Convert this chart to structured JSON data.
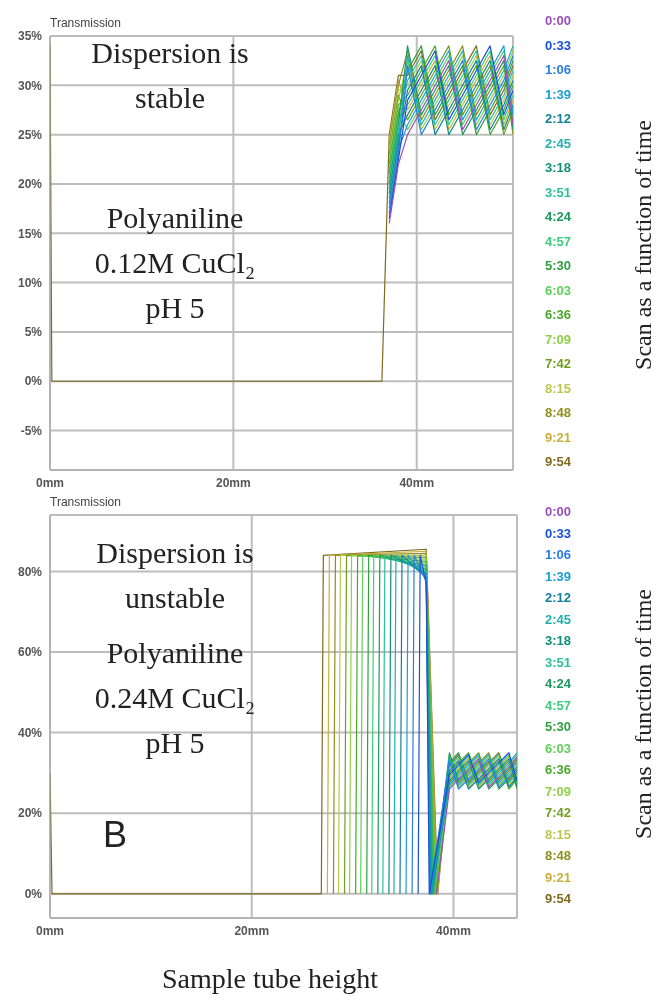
{
  "chart_data": [
    {
      "type": "line",
      "ylabel": "Transmission",
      "legend_title": "Scan as a function of time",
      "legend": "right",
      "grid": true,
      "xlim": [
        0,
        50.5
      ],
      "xticks": [
        {
          "value": 0,
          "label": "0mm"
        },
        {
          "value": 20,
          "label": "20mm"
        },
        {
          "value": 40,
          "label": "40mm"
        }
      ],
      "ylim": [
        -9,
        35
      ],
      "yticks": [
        {
          "value": -5,
          "label": "-5%"
        },
        {
          "value": 0,
          "label": "0%"
        },
        {
          "value": 5,
          "label": "5%"
        },
        {
          "value": 10,
          "label": "10%"
        },
        {
          "value": 15,
          "label": "15%"
        },
        {
          "value": 20,
          "label": "20%"
        },
        {
          "value": 25,
          "label": "25%"
        },
        {
          "value": 30,
          "label": "30%"
        },
        {
          "value": 35,
          "label": "35%"
        }
      ],
      "annotations": [
        "Dispersion is\nstable",
        "Polyaniline\n0.12M CuCl₂\npH 5"
      ],
      "x": [
        0,
        0.2,
        20,
        36.2,
        37,
        38,
        39,
        40.5,
        42,
        43.5,
        45,
        46.5,
        48,
        49.5,
        50.5
      ],
      "series": [
        {
          "name": "0:00",
          "color": "#9b4fb8",
          "values": [
            null,
            null,
            null,
            null,
            16,
            22,
            25,
            27.5,
            30,
            32.5,
            25.5,
            28,
            30.5,
            33,
            26
          ]
        },
        {
          "name": "0:33",
          "color": "#1c4fd6",
          "values": [
            null,
            null,
            null,
            null,
            16.5,
            22.5,
            28.5,
            31,
            33.5,
            26.5,
            29,
            31.5,
            34,
            27,
            29.5
          ]
        },
        {
          "name": "1:06",
          "color": "#2b7de0",
          "values": [
            null,
            null,
            null,
            null,
            17,
            23,
            32,
            25,
            27.5,
            30,
            32.5,
            25.5,
            28,
            30.5,
            33
          ]
        },
        {
          "name": "1:39",
          "color": "#1a9fd0",
          "values": [
            null,
            null,
            null,
            null,
            17.5,
            23.5,
            26,
            28.5,
            31,
            33.5,
            26.5,
            29,
            31.5,
            34,
            27
          ]
        },
        {
          "name": "2:12",
          "color": "#127f99",
          "values": [
            null,
            null,
            null,
            null,
            18,
            24,
            29.5,
            32,
            25,
            27.5,
            30,
            32.5,
            25.5,
            28,
            30.5
          ]
        },
        {
          "name": "2:45",
          "color": "#20b0b0",
          "values": [
            null,
            null,
            null,
            null,
            18.5,
            24.5,
            33,
            26,
            28.5,
            31,
            33.5,
            26.5,
            29,
            31.5,
            34
          ]
        },
        {
          "name": "3:18",
          "color": "#0f8f7a",
          "values": [
            null,
            null,
            null,
            null,
            19,
            25,
            27,
            29.5,
            32,
            25,
            27.5,
            30,
            32.5,
            25.5,
            28
          ]
        },
        {
          "name": "3:51",
          "color": "#2cc09a",
          "values": [
            null,
            null,
            null,
            null,
            19.5,
            25.5,
            30.5,
            33,
            26,
            28.5,
            31,
            33.5,
            26.5,
            29,
            31.5
          ]
        },
        {
          "name": "4:24",
          "color": "#1b9a5e",
          "values": [
            null,
            null,
            null,
            null,
            20,
            26,
            34,
            27,
            29.5,
            32,
            25,
            27.5,
            30,
            32.5,
            25.5
          ]
        },
        {
          "name": "4:57",
          "color": "#3ccf78",
          "values": [
            null,
            null,
            null,
            null,
            20.5,
            26.5,
            28,
            30.5,
            33,
            26,
            28.5,
            31,
            33.5,
            26.5,
            29
          ]
        },
        {
          "name": "5:30",
          "color": "#2f9f3f",
          "values": [
            null,
            null,
            null,
            null,
            21,
            27,
            31.5,
            34,
            27,
            29.5,
            32,
            25,
            27.5,
            30,
            32.5
          ]
        },
        {
          "name": "6:03",
          "color": "#5fd05a",
          "values": [
            null,
            null,
            null,
            null,
            21.5,
            27.5,
            25.5,
            28,
            30.5,
            33,
            26,
            28.5,
            31,
            33.5,
            26.5
          ]
        },
        {
          "name": "6:36",
          "color": "#4aa82a",
          "values": [
            null,
            null,
            null,
            null,
            22,
            28,
            29,
            31.5,
            34,
            27,
            29.5,
            32,
            25,
            27.5,
            30
          ]
        },
        {
          "name": "7:09",
          "color": "#8fd048",
          "values": [
            null,
            null,
            null,
            null,
            22.5,
            28.5,
            32.5,
            25.5,
            28,
            30.5,
            33,
            26,
            28.5,
            31,
            33.5
          ]
        },
        {
          "name": "7:42",
          "color": "#6f9f20",
          "values": [
            null,
            null,
            null,
            null,
            23,
            29,
            26.5,
            29,
            31.5,
            34,
            27,
            29.5,
            32,
            25,
            27.5
          ]
        },
        {
          "name": "8:15",
          "color": "#b8c850",
          "values": [
            null,
            null,
            null,
            null,
            23.5,
            29.5,
            30,
            32.5,
            25.5,
            28,
            30.5,
            33,
            26,
            28.5,
            31
          ]
        },
        {
          "name": "8:48",
          "color": "#8f8f20",
          "values": [
            null,
            null,
            null,
            null,
            24,
            30,
            33.5,
            26.5,
            29,
            31.5,
            34,
            27,
            29.5,
            32,
            25
          ]
        },
        {
          "name": "9:21",
          "color": "#c8b040",
          "values": [
            null,
            null,
            null,
            null,
            24.5,
            30.5,
            27.5,
            30,
            32.5,
            25.5,
            28,
            30.5,
            33,
            26,
            28.5
          ]
        },
        {
          "name": "9:54",
          "color": "#7f6a20",
          "values": [
            34,
            0,
            0,
            0,
            25,
            31,
            31,
            33.5,
            26.5,
            29,
            31.5,
            34,
            27,
            29.5,
            32
          ]
        }
      ]
    },
    {
      "type": "line",
      "ylabel": "Transmission",
      "xlabel": "Sample tube height",
      "legend_title": "Scan as a function of time",
      "legend": "right",
      "grid": true,
      "xlim": [
        0,
        46.3
      ],
      "xticks": [
        {
          "value": 0,
          "label": "0mm"
        },
        {
          "value": 20,
          "label": "20mm"
        },
        {
          "value": 40,
          "label": "40mm"
        }
      ],
      "ylim": [
        -6,
        94
      ],
      "yticks": [
        {
          "value": 0,
          "label": "0%"
        },
        {
          "value": 20,
          "label": "20%"
        },
        {
          "value": 40,
          "label": "40%"
        },
        {
          "value": 60,
          "label": "60%"
        },
        {
          "value": 80,
          "label": "80%"
        }
      ],
      "annotations": [
        "Dispersion is\nunstable",
        "Polyaniline\n0.24M CuCl₂\npH 5",
        "B"
      ],
      "series": [
        {
          "name": "0:00",
          "color": "#9b4fb8",
          "x": [
            38.3,
            39.6,
            40.5,
            41.5,
            42.5,
            43.5,
            44.5,
            45.5,
            46.3
          ],
          "values": [
            0,
            26,
            28.5,
            31,
            33.5,
            26.5,
            29,
            31.5,
            34
          ]
        },
        {
          "name": "0:33",
          "color": "#1c4fd6",
          "x": [
            36.5,
            36.7,
            37.3,
            37.6,
            39.6,
            40.5,
            41.5,
            42.5,
            43.5,
            44.5,
            45.5,
            46.3
          ],
          "values": [
            0,
            84,
            77,
            0,
            29.5,
            32,
            34.5,
            27.5,
            30,
            32.5,
            35,
            28
          ]
        },
        {
          "name": "1:06",
          "color": "#2b7de0",
          "x": [
            35.9,
            36.1,
            37.3,
            37.65,
            39.6,
            40.5,
            41.5,
            42.5,
            43.5,
            44.5,
            45.5,
            46.3
          ],
          "values": [
            0,
            84,
            77.5,
            0,
            33,
            26,
            28.5,
            31,
            33.5,
            26.5,
            29,
            31.5
          ]
        },
        {
          "name": "1:39",
          "color": "#1a9fd0",
          "x": [
            35.3,
            35.5,
            37.3,
            37.7,
            39.6,
            40.5,
            41.5,
            42.5,
            43.5,
            44.5,
            45.5,
            46.3
          ],
          "values": [
            0,
            84,
            78,
            0,
            27,
            29.5,
            32,
            34.5,
            27.5,
            30,
            32.5,
            35
          ]
        },
        {
          "name": "2:12",
          "color": "#127f99",
          "x": [
            34.7,
            34.9,
            37.3,
            37.75,
            39.6,
            40.5,
            41.5,
            42.5,
            43.5,
            44.5,
            45.5,
            46.3
          ],
          "values": [
            0,
            84,
            78.5,
            0,
            30.5,
            33,
            26,
            28.5,
            31,
            33.5,
            26.5,
            29
          ]
        },
        {
          "name": "2:45",
          "color": "#20b0b0",
          "x": [
            34.1,
            34.3,
            37.3,
            37.8,
            39.6,
            40.5,
            41.5,
            42.5,
            43.5,
            44.5,
            45.5,
            46.3
          ],
          "values": [
            0,
            84,
            79,
            0,
            34,
            27,
            29.5,
            32,
            34.5,
            27.5,
            30,
            32.5
          ]
        },
        {
          "name": "3:18",
          "color": "#0f8f7a",
          "x": [
            33.6,
            33.8,
            37.3,
            37.85,
            39.6,
            40.5,
            41.5,
            42.5,
            43.5,
            44.5,
            45.5,
            46.3
          ],
          "values": [
            0,
            84,
            79.5,
            0,
            28,
            30.5,
            33,
            26,
            28.5,
            31,
            33.5,
            26.5
          ]
        },
        {
          "name": "3:51",
          "color": "#2cc09a",
          "x": [
            33,
            33.2,
            37.3,
            37.9,
            39.6,
            40.5,
            41.5,
            42.5,
            43.5,
            44.5,
            45.5,
            46.3
          ],
          "values": [
            0,
            84,
            80,
            0,
            31.5,
            34,
            27,
            29.5,
            32,
            34.5,
            27.5,
            30
          ]
        },
        {
          "name": "4:24",
          "color": "#1b9a5e",
          "x": [
            32.5,
            32.7,
            37.3,
            37.95,
            39.6,
            40.5,
            41.5,
            42.5,
            43.5,
            44.5,
            45.5,
            46.3
          ],
          "values": [
            0,
            84,
            80.5,
            0,
            35,
            28,
            30.5,
            33,
            26,
            28.5,
            31,
            33.5
          ]
        },
        {
          "name": "4:57",
          "color": "#3ccf78",
          "x": [
            31.9,
            32.1,
            37.3,
            38,
            39.6,
            40.5,
            41.5,
            42.5,
            43.5,
            44.5,
            45.5,
            46.3
          ],
          "values": [
            0,
            84,
            81,
            0,
            29,
            31.5,
            34,
            27,
            29.5,
            32,
            34.5,
            27.5
          ]
        },
        {
          "name": "5:30",
          "color": "#2f9f3f",
          "x": [
            31.4,
            31.6,
            37.3,
            38.05,
            39.6,
            40.5,
            41.5,
            42.5,
            43.5,
            44.5,
            45.5,
            46.3
          ],
          "values": [
            0,
            84,
            81.5,
            0,
            32.5,
            35,
            28,
            30.5,
            33,
            26,
            28.5,
            31
          ]
        },
        {
          "name": "6:03",
          "color": "#5fd05a",
          "x": [
            30.8,
            31,
            37.3,
            38.1,
            39.6,
            40.5,
            41.5,
            42.5,
            43.5,
            44.5,
            45.5,
            46.3
          ],
          "values": [
            0,
            84,
            82,
            0,
            26.5,
            29,
            31.5,
            34,
            27,
            29.5,
            32,
            34.5
          ]
        },
        {
          "name": "6:36",
          "color": "#4aa82a",
          "x": [
            30.3,
            30.5,
            37.3,
            38.15,
            39.6,
            40.5,
            41.5,
            42.5,
            43.5,
            44.5,
            45.5,
            46.3
          ],
          "values": [
            0,
            84,
            82.5,
            0,
            30,
            32.5,
            35,
            28,
            30.5,
            33,
            26,
            28.5
          ]
        },
        {
          "name": "7:09",
          "color": "#8fd048",
          "x": [
            29.7,
            29.9,
            37.3,
            38.2,
            39.6,
            40.5,
            41.5,
            42.5,
            43.5,
            44.5,
            45.5,
            46.3
          ],
          "values": [
            0,
            84,
            83,
            0,
            33.5,
            26.5,
            29,
            31.5,
            34,
            27,
            29.5,
            32
          ]
        },
        {
          "name": "7:42",
          "color": "#6f9f20",
          "x": [
            29.2,
            29.4,
            37.3,
            38.25,
            39.6,
            40.5,
            41.5,
            42.5,
            43.5,
            44.5,
            45.5,
            46.3
          ],
          "values": [
            0,
            84,
            83.5,
            0,
            27.5,
            30,
            32.5,
            35,
            28,
            30.5,
            33,
            26
          ]
        },
        {
          "name": "8:15",
          "color": "#b8c850",
          "x": [
            28.6,
            28.8,
            37.3,
            38.3,
            39.6,
            40.5,
            41.5,
            42.5,
            43.5,
            44.5,
            45.5,
            46.3
          ],
          "values": [
            0,
            84,
            84,
            0,
            31,
            33.5,
            26.5,
            29,
            31.5,
            34,
            27,
            29.5
          ]
        },
        {
          "name": "8:48",
          "color": "#8f8f20",
          "x": [
            28.1,
            28.3,
            37.3,
            38.35,
            39.6,
            40.5,
            41.5,
            42.5,
            43.5,
            44.5,
            45.5,
            46.3
          ],
          "values": [
            0,
            84,
            84.5,
            0,
            34.5,
            27.5,
            30,
            32.5,
            35,
            28,
            30.5,
            33
          ]
        },
        {
          "name": "9:21",
          "color": "#c8b040",
          "x": [
            27.5,
            27.7,
            37.3,
            38.4,
            39.6,
            40.5,
            41.5,
            42.5,
            43.5,
            44.5,
            45.5,
            46.3
          ],
          "values": [
            0,
            84,
            85,
            0,
            28.5,
            31,
            33.5,
            26.5,
            29,
            31.5,
            34,
            27
          ]
        },
        {
          "name": "9:54",
          "color": "#7f6a20",
          "x": [
            0,
            0.2,
            26.9,
            27.1,
            37.3,
            38.45,
            39.6,
            40.5,
            41.5,
            42.5,
            43.5,
            44.5,
            45.5,
            46.3
          ],
          "values": [
            30,
            0,
            0,
            84,
            85.5,
            0,
            32,
            34.5,
            27.5,
            30,
            32.5,
            35,
            28,
            30.5
          ]
        }
      ]
    }
  ]
}
